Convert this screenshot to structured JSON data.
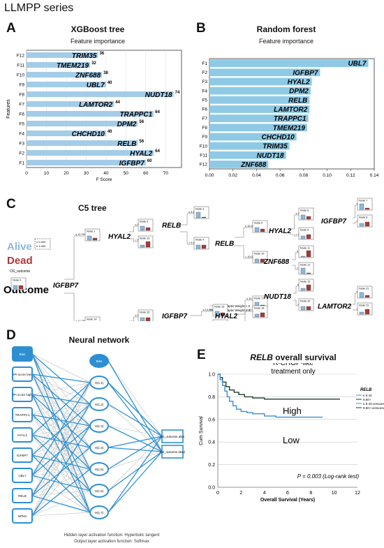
{
  "figure": {
    "series_title": "LLMPP series",
    "panels": {
      "A": {
        "letter": "A",
        "title": "XGBoost tree",
        "subtitle": "Feature importance"
      },
      "B": {
        "letter": "B",
        "title": "Random forest",
        "subtitle": "Feature importance"
      },
      "C": {
        "letter": "C",
        "title": "C5 tree"
      },
      "D": {
        "letter": "D",
        "title": "Neural network"
      },
      "E": {
        "letter": "E",
        "title_gene": "RELB",
        "title_rest": " overall survival"
      }
    }
  },
  "chart_data": [
    {
      "id": "xgboost",
      "type": "bar",
      "orientation": "horizontal",
      "categories": [
        "F12",
        "F11",
        "F10",
        "F9",
        "F8",
        "F7",
        "F6",
        "F5",
        "F4",
        "F3",
        "F2",
        "F1"
      ],
      "gene_labels": [
        "TRIM35",
        "TMEM219",
        "ZNF688",
        "UBL7",
        "NUDT18",
        "LAMTOR2",
        "TRAPPC1",
        "DPM2",
        "CHCHD10",
        "RELB",
        "HYAL2",
        "IGFBP7"
      ],
      "values": [
        36,
        32,
        38,
        40,
        74,
        44,
        64,
        56,
        40,
        56,
        64,
        60
      ],
      "xlabel": "F Score",
      "ylabel": "Features",
      "xlim": [
        0,
        78
      ],
      "xticks": [
        0,
        10,
        20,
        30,
        40,
        50,
        60,
        70
      ],
      "grid": true,
      "color": "#a3cce8"
    },
    {
      "id": "random_forest",
      "type": "bar",
      "orientation": "horizontal",
      "categories": [
        "F1",
        "F2",
        "F3",
        "F4",
        "F5",
        "F6",
        "F7",
        "F8",
        "F9",
        "F10",
        "F11",
        "F12"
      ],
      "gene_labels": [
        "UBL7",
        "IGFBP7",
        "HYAL2",
        "DPM2",
        "RELB",
        "LAMTOR2",
        "TRAPPC1",
        "TMEM219",
        "CHCHD10",
        "TRIM35",
        "NUDT18",
        "ZNF688"
      ],
      "values": [
        0.135,
        0.094,
        0.087,
        0.086,
        0.085,
        0.085,
        0.084,
        0.083,
        0.074,
        0.068,
        0.065,
        0.05
      ],
      "xlim": [
        0,
        0.14
      ],
      "xticks": [
        "0.00",
        "0.02",
        "0.04",
        "0.06",
        "0.08",
        "0.10",
        "0.12",
        "0.14"
      ],
      "color": "#8ecae6"
    },
    {
      "id": "survival",
      "type": "line",
      "title": "R-CHOP-like treatment only",
      "title_line1": "R-CHOP-like",
      "title_line2": "treatment only",
      "xlabel": "Overall Survival (Years)",
      "ylabel": "Cum Survival",
      "xlim": [
        0,
        12
      ],
      "ylim": [
        0,
        1.0
      ],
      "xticks": [
        0,
        2,
        4,
        6,
        8,
        10,
        12
      ],
      "yticks": [
        "0.0",
        "0.2",
        "0.4",
        "0.6",
        "0.8",
        "1.0"
      ],
      "legend": {
        "title": "RELB",
        "entries": [
          "≤ 9.43",
          "9.50+",
          "≤ 9.43-censored",
          "9.50+-censored"
        ],
        "position": "top-right"
      },
      "group_labels": {
        "high": "High",
        "low": "Low"
      },
      "pvalue": "P = 0.003 (Log-rank test)",
      "series": [
        {
          "name": "9.50+",
          "color": "#1d3c2a",
          "x": [
            0,
            0.2,
            0.4,
            0.7,
            1.0,
            1.4,
            1.8,
            2.3,
            3.0,
            4.0,
            5.5,
            10.5
          ],
          "y": [
            1.0,
            0.97,
            0.93,
            0.89,
            0.86,
            0.84,
            0.82,
            0.8,
            0.79,
            0.78,
            0.78,
            0.78
          ]
        },
        {
          "name": "≤ 9.43",
          "color": "#3a8fd0",
          "x": [
            0,
            0.2,
            0.4,
            0.6,
            0.8,
            1.0,
            1.3,
            1.6,
            2.0,
            2.5,
            3.0,
            4.0,
            5.0,
            9.0
          ],
          "y": [
            1.0,
            0.95,
            0.9,
            0.85,
            0.8,
            0.76,
            0.72,
            0.69,
            0.67,
            0.66,
            0.65,
            0.63,
            0.62,
            0.62
          ]
        }
      ]
    }
  ],
  "tree": {
    "legend_alive": "Alive",
    "legend_dead": "Dead",
    "legend_box_line1": "≤ 0.000",
    "legend_box_line2": "≥ 1.000",
    "outcome_label": "Outcome",
    "root_label": "OS_outcome",
    "root_node": "Node 0",
    "edge_legend_1": "Synaptic Weight > 0",
    "edge_legend_2": "Synaptic Weight < 0",
    "splits": [
      {
        "id": "IGFBP7",
        "label": "IGFBP7"
      },
      {
        "id": "HYAL2a",
        "label": "HYAL2"
      },
      {
        "id": "UBL7",
        "label": "UBL7"
      },
      {
        "id": "RELBa",
        "label": "RELB"
      },
      {
        "id": "IGFBP7b",
        "label": "IGFBP7"
      },
      {
        "id": "RELBb",
        "label": "RELB"
      },
      {
        "id": "HYAL2b",
        "label": "HYAL2"
      },
      {
        "id": "HYAL2c",
        "label": "HYAL2"
      },
      {
        "id": "ZNF688",
        "label": "ZNF688"
      },
      {
        "id": "NUDT18",
        "label": "NUDT18"
      },
      {
        "id": "IGFBP7c",
        "label": "IGFBP7"
      },
      {
        "id": "LAMTOR2",
        "label": "LAMTOR2"
      }
    ],
    "nodes": [
      {
        "label": "Node 1",
        "a": 0.6,
        "d": 0.3
      },
      {
        "label": "Node 14",
        "a": 0.5,
        "d": 0.6
      },
      {
        "label": "Node 2",
        "a": 0.6,
        "d": 0.4
      },
      {
        "label": "Node 13",
        "a": 0.3,
        "d": 0.8
      },
      {
        "label": "Node 15",
        "a": 0.5,
        "d": 0.5
      },
      {
        "label": "Node 24",
        "a": 0.3,
        "d": 0.7
      },
      {
        "label": "Node 3",
        "a": 0.8,
        "d": 0.1
      },
      {
        "label": "Node 4",
        "a": 0.5,
        "d": 0.5
      },
      {
        "label": "Node 16",
        "a": 0.6,
        "d": 0.4
      },
      {
        "label": "Node 23",
        "a": 0.4,
        "d": 0.6
      },
      {
        "label": "Node 5",
        "a": 0.6,
        "d": 0.4
      },
      {
        "label": "Node 10",
        "a": 0.5,
        "d": 0.5
      },
      {
        "label": "Node 17",
        "a": 0.7,
        "d": 0.3
      },
      {
        "label": "Node 18",
        "a": 0.4,
        "d": 0.6
      },
      {
        "label": "Node 6",
        "a": 0.6,
        "d": 0.4
      },
      {
        "label": "Node 9",
        "a": 0.4,
        "d": 0.6
      },
      {
        "label": "Node 11",
        "a": 0.1,
        "d": 0.9
      },
      {
        "label": "Node 12",
        "a": 0.8,
        "d": 0.1
      },
      {
        "label": "Node 19",
        "a": 0.3,
        "d": 0.8
      },
      {
        "label": "Node 20",
        "a": 0.5,
        "d": 0.5
      },
      {
        "label": "Node 7",
        "a": 0.8,
        "d": 0.2
      },
      {
        "label": "Node 8",
        "a": 0.4,
        "d": 0.6
      },
      {
        "label": "Node 21",
        "a": 0.7,
        "d": 0.3
      },
      {
        "label": "Node 22",
        "a": 0.3,
        "d": 0.7
      }
    ],
    "thresholds": [
      "≤ 12.784",
      "> 12.784",
      "≤ 9.761",
      "> 9.761",
      "≤ 10.050",
      "> 10.050",
      "≤ 9.560",
      "> 9.560",
      "≤ 14.000",
      "> 14.000",
      "≤ 10.050",
      "> 10.050",
      "≤ 10.130",
      "> 10.130",
      "≤ 9.349",
      "> 9.349",
      "≤ 9.752",
      "> 9.752",
      "≤ 9.857",
      "> 9.857",
      "≤ 12.344",
      "> 12.344",
      "≤ 10.639",
      "> 10.639"
    ]
  },
  "nn": {
    "inputs": [
      "Bias",
      "IPI score low",
      "IPI score high",
      "TRAPPC1",
      "HYAL2",
      "IGFBP7",
      "UBL7",
      "RELB",
      "NPM1"
    ],
    "hidden": [
      "Bias",
      "H(1:1)",
      "H(1:2)",
      "H(1:3)",
      "H(1:4)",
      "H(1:5)",
      "H(1:6)",
      "H(1:7)"
    ],
    "outputs": [
      "OS_outcome alive",
      "OS_outcome dead"
    ],
    "footer1": "Hidden layer activation function: Hyperbolic tangent",
    "footer2": "Output layer activation function: Softmax"
  }
}
